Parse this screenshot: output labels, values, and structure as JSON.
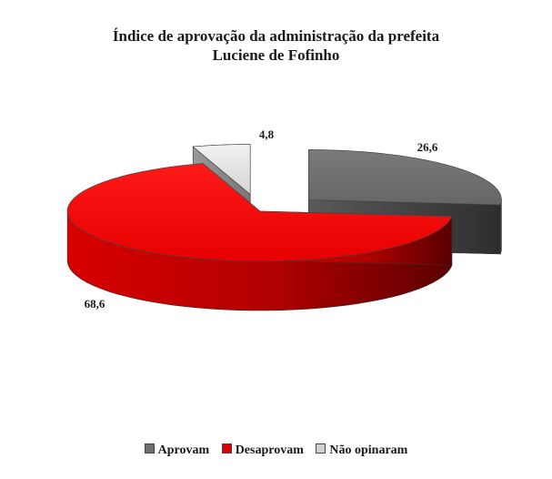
{
  "chart_data": {
    "type": "pie",
    "title_line1": "Índice de aprovação da administração da prefeita",
    "title_line2": "Luciene de Fofinho",
    "categories": [
      "Aprovam",
      "Desaprovam",
      "Não opinaram"
    ],
    "values": [
      26.6,
      68.6,
      4.8
    ],
    "value_labels": [
      "26,6",
      "68,6",
      "4,8"
    ],
    "colors": [
      "#6e6e6e",
      "#e00000",
      "#d0d0d0"
    ],
    "legend_position": "bottom",
    "exploded": true,
    "three_d": true
  }
}
